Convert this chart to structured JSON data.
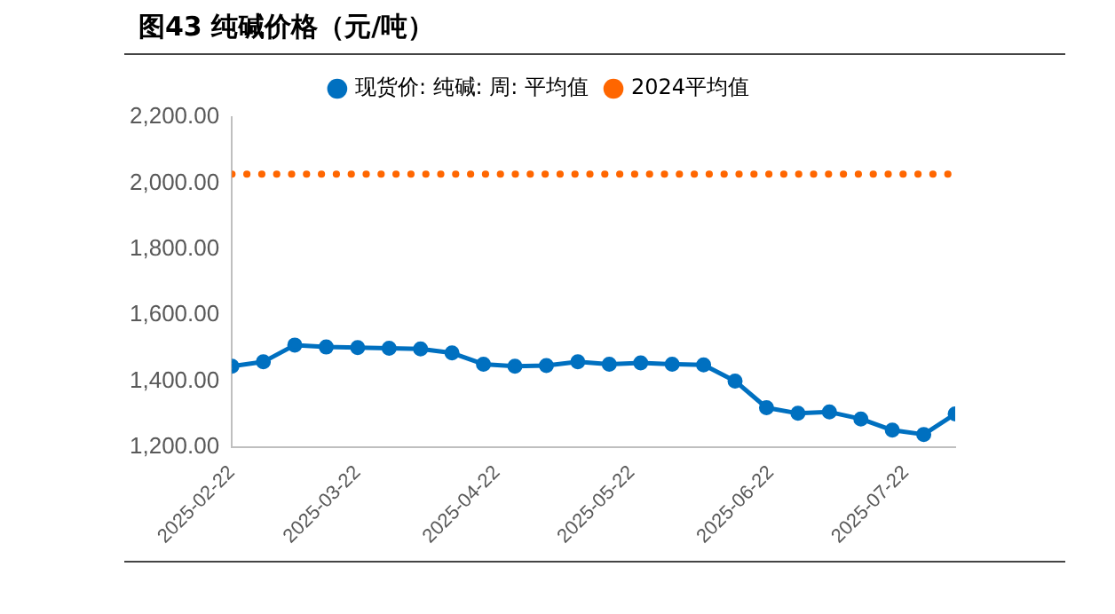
{
  "chart_data": {
    "type": "line",
    "title": "图43 纯碱价格（元/吨）",
    "x": [
      "2025-02-22",
      "2025-03-01",
      "2025-03-08",
      "2025-03-15",
      "2025-03-22",
      "2025-03-29",
      "2025-04-05",
      "2025-04-12",
      "2025-04-19",
      "2025-04-26",
      "2025-05-03",
      "2025-05-10",
      "2025-05-17",
      "2025-05-24",
      "2025-05-31",
      "2025-06-07",
      "2025-06-14",
      "2025-06-21",
      "2025-06-28",
      "2025-07-05",
      "2025-07-12",
      "2025-07-19",
      "2025-07-26",
      "2025-08-02"
    ],
    "series": [
      {
        "name": "现货价: 纯碱: 周: 平均值",
        "color": "#0070c0",
        "marker": "circle",
        "line_style": "solid",
        "values": [
          1445,
          1458,
          1509,
          1503,
          1501,
          1499,
          1497,
          1485,
          1451,
          1445,
          1447,
          1458,
          1451,
          1455,
          1451,
          1449,
          1400,
          1319,
          1302,
          1306,
          1285,
          1251,
          1238,
          1300
        ]
      },
      {
        "name": "2024平均值",
        "color": "#ff6600",
        "marker": "none",
        "line_style": "dotted",
        "values": [
          2027,
          2027,
          2027,
          2027,
          2027,
          2027,
          2027,
          2027,
          2027,
          2027,
          2027,
          2027,
          2027,
          2027,
          2027,
          2027,
          2027,
          2027,
          2027,
          2027,
          2027,
          2027,
          2027,
          2027
        ]
      }
    ],
    "xlim": [
      "2025-02-22",
      "2025-08-02"
    ],
    "xticks": [
      "2025-02-22",
      "2025-03-22",
      "2025-04-22",
      "2025-05-22",
      "2025-06-22",
      "2025-07-22"
    ],
    "ylim": [
      1200,
      2200
    ],
    "yticks": [
      {
        "value": 1200,
        "label": "1,200.00"
      },
      {
        "value": 1400,
        "label": "1,400.00"
      },
      {
        "value": 1600,
        "label": "1,600.00"
      },
      {
        "value": 1800,
        "label": "1,800.00"
      },
      {
        "value": 2000,
        "label": "2,000.00"
      },
      {
        "value": 2200,
        "label": "2,200.00"
      }
    ],
    "grid": false,
    "legend": "top"
  }
}
